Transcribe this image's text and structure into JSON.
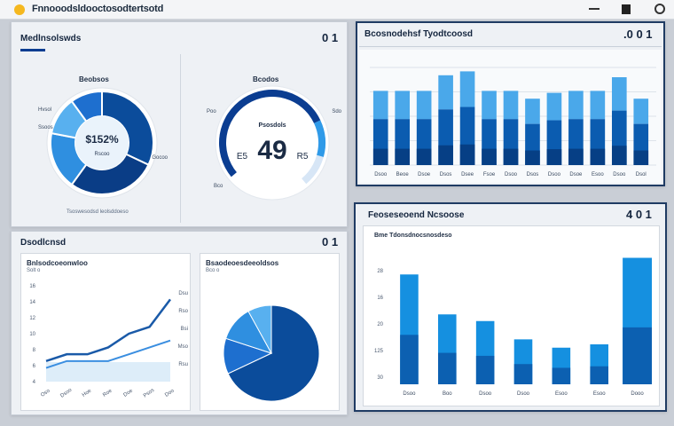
{
  "app": {
    "title": "Fnnooodsldooctosodtertsotd",
    "accent": "#0b3d91",
    "brand_dot": "#f5b820"
  },
  "icons": {
    "minimize": "minimize-icon",
    "maximize": "maximize-icon",
    "settings": "settings-icon"
  },
  "overview": {
    "title": "Medlnsolswds",
    "number": "0 1",
    "donut": {
      "title": "Beobsos",
      "center_value": "$152%",
      "center_sub": "Rscoo",
      "labels": [
        "Hvsol",
        "Ssoos",
        "Gocoo"
      ],
      "footer": "Tsoswesodsd leolsddoeso",
      "slices": [
        {
          "value": 32,
          "color": "#0b4c9b"
        },
        {
          "value": 28,
          "color": "#0a3d86"
        },
        {
          "value": 18,
          "color": "#2f8fe0"
        },
        {
          "value": 12,
          "color": "#58b0ef"
        },
        {
          "value": 10,
          "color": "#1e6fcf"
        }
      ]
    },
    "gauge": {
      "title": "Bcodos",
      "label": "Psosdols",
      "value": "49",
      "prefix": "E5",
      "suffix": "R5",
      "labels": [
        "Poo",
        "Sdo",
        "Bco"
      ],
      "level": 0.72
    }
  },
  "bar_panel": {
    "title": "Bcosnodehsf Tyodtcoosd",
    "number": ".0 0 1",
    "categories": [
      "Dsoo",
      "Beoe",
      "Dsoe",
      "Dsos",
      "Dsee",
      "Fsoe",
      "Dsoo",
      "Dsos",
      "Dsoo",
      "Dsoe",
      "Esoo",
      "Dsoo",
      "Dsol"
    ],
    "values": [
      76,
      76,
      76,
      92,
      96,
      76,
      76,
      68,
      74,
      76,
      76,
      90,
      68
    ]
  },
  "trends_panel": {
    "title": "Dsodlcnsd",
    "number": "0 1",
    "line_card": {
      "title": "Bnlsodcoeonwloo",
      "subtitle": "Solt o",
      "ylabels": [
        "4",
        "6",
        "8",
        "10",
        "12",
        "14",
        "16"
      ],
      "xlabels": [
        "Oso",
        "Dsoo",
        "Hoe",
        "Roe",
        "Doe",
        "Psos",
        "Doo"
      ],
      "rlabels": [
        "Dsu",
        "Rso",
        "Bsi",
        "Mso",
        "Rsu"
      ],
      "series": [
        {
          "values": [
            3,
            4,
            4,
            5,
            7,
            8,
            12
          ],
          "color": "#1a5aa8"
        },
        {
          "values": [
            2,
            3,
            3,
            3,
            4,
            5,
            6
          ],
          "color": "#3a8ee0"
        }
      ]
    },
    "pie_card": {
      "title": "Bsaodeoesdeeoldsos",
      "subtitle": "Bco o",
      "slices": [
        {
          "value": 68,
          "color": "#0b4c9b"
        },
        {
          "value": 12,
          "color": "#1e6fcf"
        },
        {
          "value": 12,
          "color": "#2f8fe0"
        },
        {
          "value": 8,
          "color": "#58b0ef"
        }
      ]
    }
  },
  "right_panel": {
    "title": "Feoseseoend Ncsoose",
    "number": "4 0 1",
    "chart_title": "Bme Tdonsdnocsnosdeso",
    "ylabels": [
      "30",
      "125",
      "20",
      "16",
      "28"
    ],
    "categories": [
      "Dsoo",
      "Boo",
      "Dsoo",
      "Dsoo",
      "Esoo",
      "Esoo",
      "Dooo"
    ],
    "values": [
      66,
      42,
      38,
      27,
      22,
      24,
      76
    ]
  }
}
